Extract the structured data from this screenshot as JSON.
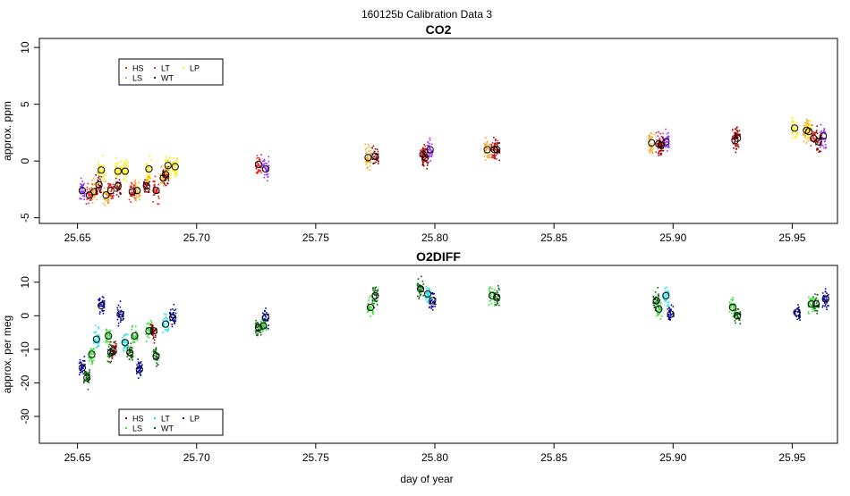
{
  "suptitle": "160125b   Calibration Data 3",
  "xlabel": "day of year",
  "colors": {
    "HS": "#e41a1c",
    "LS": "#f5a623",
    "LT": "#9b30ff",
    "WT": "#8b0000",
    "LP": "#ffee00",
    "o2_HS": "#8b0000",
    "o2_LS": "#33dd33",
    "o2_LT": "#22e5e5",
    "o2_WT": "#006400",
    "o2_LP": "#0000aa"
  },
  "chart_data": [
    {
      "type": "scatter",
      "title": "CO2",
      "ylabel": "approx. ppm",
      "xlim": [
        25.634,
        25.969
      ],
      "ylim": [
        -5.5,
        10.8
      ],
      "xticks": [
        "25.65",
        "25.70",
        "25.75",
        "25.80",
        "25.85",
        "25.90",
        "25.95"
      ],
      "yticks": [
        "-5",
        "0",
        "5",
        "10"
      ],
      "legend": {
        "position": "top-left",
        "entries": [
          "HS",
          "LT",
          "LP",
          "LS",
          "WT"
        ]
      },
      "series": [
        {
          "name": "LT",
          "means": [
            [
              25.652,
              -2.6
            ],
            [
              25.729,
              -0.7
            ],
            [
              25.798,
              1.0
            ],
            [
              25.897,
              1.7
            ],
            [
              25.963,
              2.2
            ]
          ]
        },
        {
          "name": "HS",
          "means": [
            [
              25.655,
              -3.0
            ],
            [
              25.664,
              -2.6
            ],
            [
              25.673,
              -2.7
            ],
            [
              25.683,
              -2.6
            ],
            [
              25.726,
              -0.3
            ],
            [
              25.795,
              0.6
            ],
            [
              25.825,
              1.0
            ],
            [
              25.894,
              1.5
            ],
            [
              25.926,
              1.8
            ],
            [
              25.959,
              2.0
            ]
          ]
        },
        {
          "name": "LS",
          "means": [
            [
              25.657,
              -2.7
            ],
            [
              25.662,
              -3.0
            ],
            [
              25.675,
              -2.6
            ],
            [
              25.686,
              -1.5
            ],
            [
              25.772,
              0.3
            ],
            [
              25.822,
              1.0
            ],
            [
              25.891,
              1.6
            ],
            [
              25.956,
              2.7
            ]
          ]
        },
        {
          "name": "WT",
          "means": [
            [
              25.659,
              -2.1
            ],
            [
              25.667,
              -2.2
            ],
            [
              25.679,
              -2.2
            ],
            [
              25.687,
              -1.2
            ],
            [
              25.775,
              0.4
            ],
            [
              25.796,
              0.3
            ],
            [
              25.826,
              1.0
            ],
            [
              25.895,
              1.4
            ],
            [
              25.927,
              2.0
            ],
            [
              25.961,
              1.7
            ]
          ]
        },
        {
          "name": "LP",
          "means": [
            [
              25.66,
              -0.8
            ],
            [
              25.667,
              -0.9
            ],
            [
              25.67,
              -0.9
            ],
            [
              25.68,
              -0.7
            ],
            [
              25.688,
              -0.4
            ],
            [
              25.691,
              -0.5
            ],
            [
              25.951,
              2.9
            ],
            [
              25.957,
              2.6
            ]
          ]
        }
      ]
    },
    {
      "type": "scatter",
      "title": "O2DIFF",
      "ylabel": "approx. per meg",
      "xlim": [
        25.634,
        25.969
      ],
      "ylim": [
        -38,
        15
      ],
      "xticks": [
        "25.65",
        "25.70",
        "25.75",
        "25.80",
        "25.85",
        "25.90",
        "25.95"
      ],
      "yticks": [
        "-30",
        "-20",
        "-10",
        "0",
        "10"
      ],
      "legend": {
        "position": "bottom-left",
        "entries": [
          "HS",
          "LT",
          "LP",
          "LS",
          "WT"
        ]
      },
      "series": [
        {
          "name": "LP",
          "means": [
            [
              25.652,
              -15.5
            ],
            [
              25.66,
              3.0
            ],
            [
              25.668,
              0.5
            ],
            [
              25.676,
              -16.0
            ],
            [
              25.69,
              -0.5
            ],
            [
              25.729,
              -0.5
            ],
            [
              25.799,
              4.5
            ],
            [
              25.899,
              0.5
            ],
            [
              25.952,
              1.0
            ],
            [
              25.964,
              5.0
            ]
          ]
        },
        {
          "name": "WT",
          "means": [
            [
              25.654,
              -18.5
            ],
            [
              25.664,
              -11.0
            ],
            [
              25.672,
              -11.0
            ],
            [
              25.683,
              -12.0
            ],
            [
              25.726,
              -3.5
            ],
            [
              25.775,
              6.0
            ],
            [
              25.794,
              8.0
            ],
            [
              25.826,
              5.5
            ],
            [
              25.893,
              4.5
            ],
            [
              25.927,
              0.0
            ],
            [
              25.96,
              3.5
            ]
          ]
        },
        {
          "name": "LS",
          "means": [
            [
              25.656,
              -11.5
            ],
            [
              25.663,
              -6.0
            ],
            [
              25.674,
              -6.0
            ],
            [
              25.68,
              -4.5
            ],
            [
              25.728,
              -3.0
            ],
            [
              25.773,
              2.5
            ],
            [
              25.824,
              6.0
            ],
            [
              25.894,
              2.0
            ],
            [
              25.925,
              2.5
            ],
            [
              25.958,
              3.5
            ]
          ]
        },
        {
          "name": "LT",
          "means": [
            [
              25.658,
              -7.0
            ],
            [
              25.67,
              -8.0
            ],
            [
              25.687,
              -2.5
            ],
            [
              25.797,
              6.5
            ],
            [
              25.897,
              6.0
            ]
          ]
        },
        {
          "name": "HS",
          "means": [
            [
              25.665,
              -10.5
            ],
            [
              25.682,
              -4.5
            ]
          ]
        }
      ]
    }
  ]
}
